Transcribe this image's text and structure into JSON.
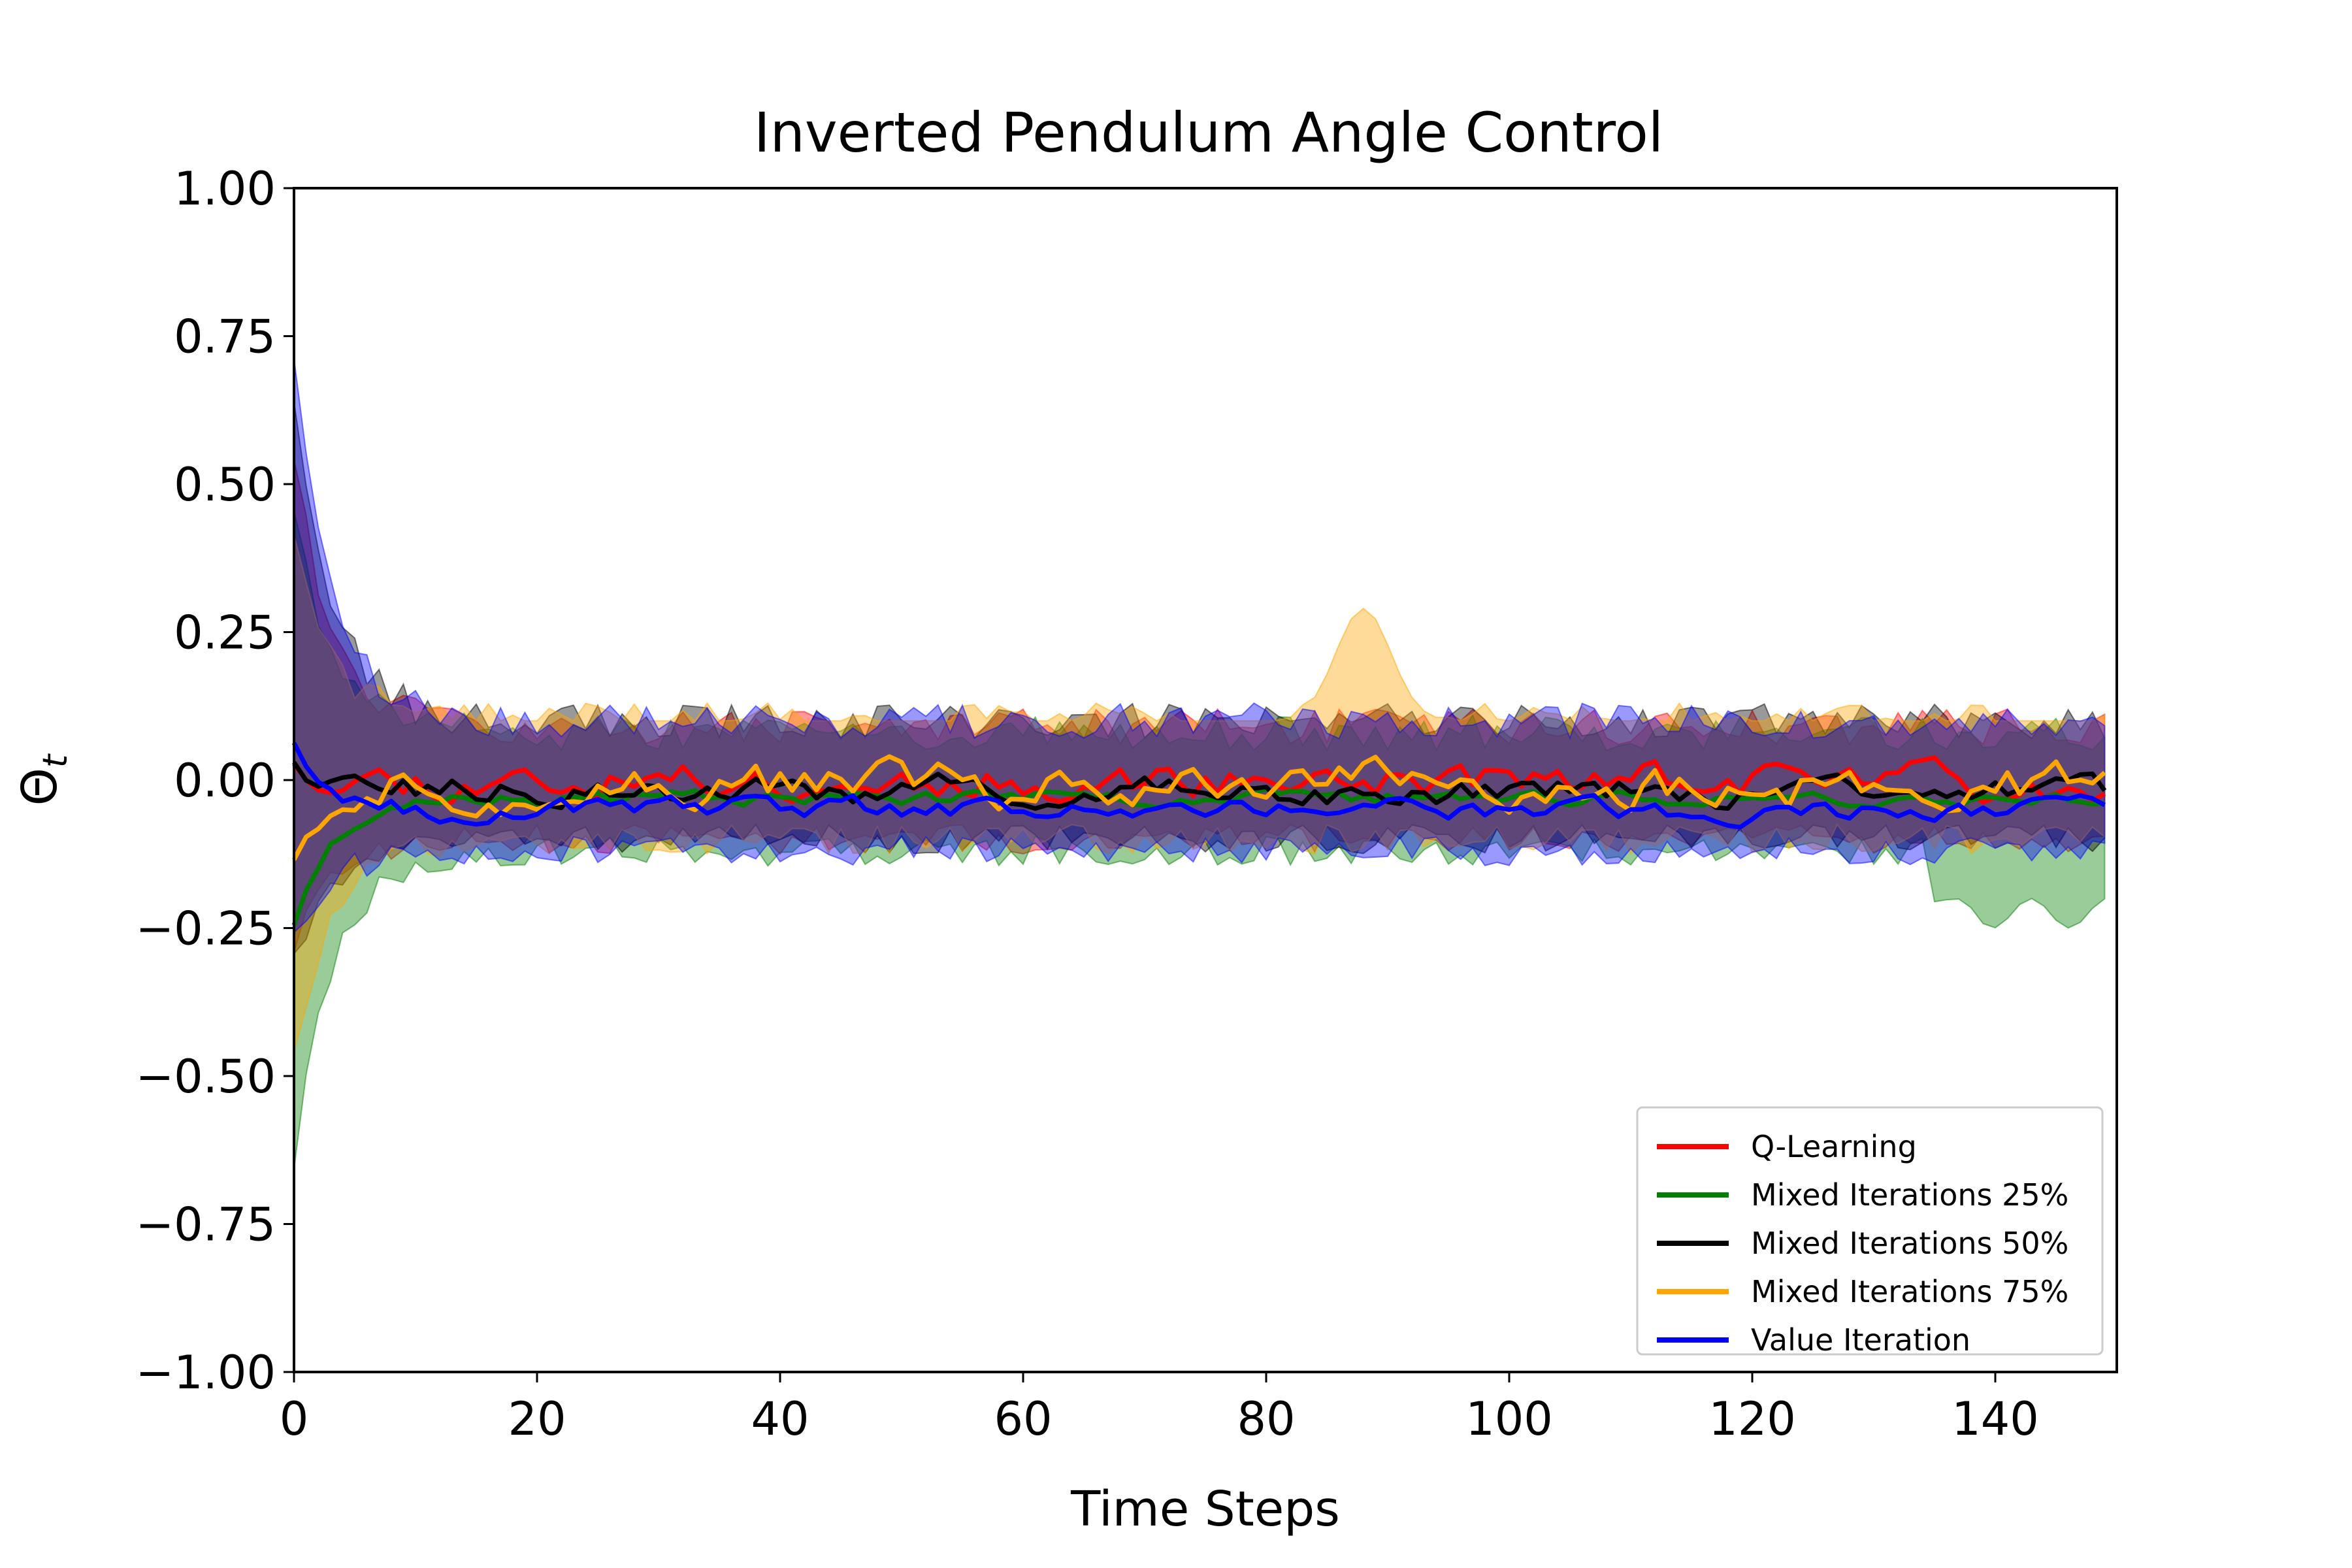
{
  "chart_data": {
    "type": "line",
    "title": "Inverted Pendulum Angle Control",
    "xlabel": "Time Steps",
    "ylabel_main": "Θ",
    "ylabel_sub": "t",
    "xlim": [
      0,
      150
    ],
    "ylim": [
      -1.0,
      1.0
    ],
    "xticks": [
      0,
      20,
      40,
      60,
      80,
      100,
      120,
      140
    ],
    "xtick_labels": [
      "0",
      "20",
      "40",
      "60",
      "80",
      "100",
      "120",
      "140"
    ],
    "yticks": [
      1.0,
      0.75,
      0.5,
      0.25,
      0.0,
      -0.25,
      -0.5,
      -0.75,
      -1.0
    ],
    "ytick_labels": [
      "1.00",
      "0.75",
      "0.50",
      "0.25",
      "0.00",
      "−0.25",
      "−0.50",
      "−0.75",
      "−1.00"
    ],
    "grid": false,
    "legend_position": "lower-right",
    "series": [
      {
        "name": "Q-Learning",
        "color": "#ff0000",
        "initial_mean": 0.04,
        "steady_mean": 0.0,
        "jitter": 0.025,
        "band_initial": [
          -0.28,
          0.55
        ],
        "band_steady": [
          -0.1,
          0.09
        ],
        "seed": 11
      },
      {
        "name": "Mixed Iterations 25%",
        "color": "#008000",
        "initial_mean": -0.24,
        "steady_mean": -0.03,
        "jitter": 0.01,
        "band_initial": [
          -0.65,
          0.45
        ],
        "band_steady": [
          -0.12,
          0.08
        ],
        "seed": 23,
        "tail_dip": [
          -0.25,
          -0.2
        ]
      },
      {
        "name": "Mixed Iterations 50%",
        "color": "#000000",
        "initial_mean": 0.04,
        "steady_mean": -0.02,
        "jitter": 0.02,
        "band_initial": [
          -0.3,
          0.66
        ],
        "band_steady": [
          -0.1,
          0.1
        ],
        "seed": 37
      },
      {
        "name": "Mixed Iterations 75%",
        "color": "#ffa500",
        "initial_mean": -0.12,
        "steady_mean": -0.01,
        "jitter": 0.03,
        "band_initial": [
          -0.48,
          0.4
        ],
        "band_steady": [
          -0.1,
          0.1
        ],
        "seed": 51,
        "bump": {
          "center": 88,
          "peak": 0.29
        }
      },
      {
        "name": "Value Iteration",
        "color": "#0000ff",
        "initial_mean": 0.07,
        "steady_mean": -0.05,
        "jitter": 0.015,
        "band_initial": [
          -0.25,
          0.7
        ],
        "band_steady": [
          -0.12,
          0.1
        ],
        "seed": 67
      }
    ]
  }
}
